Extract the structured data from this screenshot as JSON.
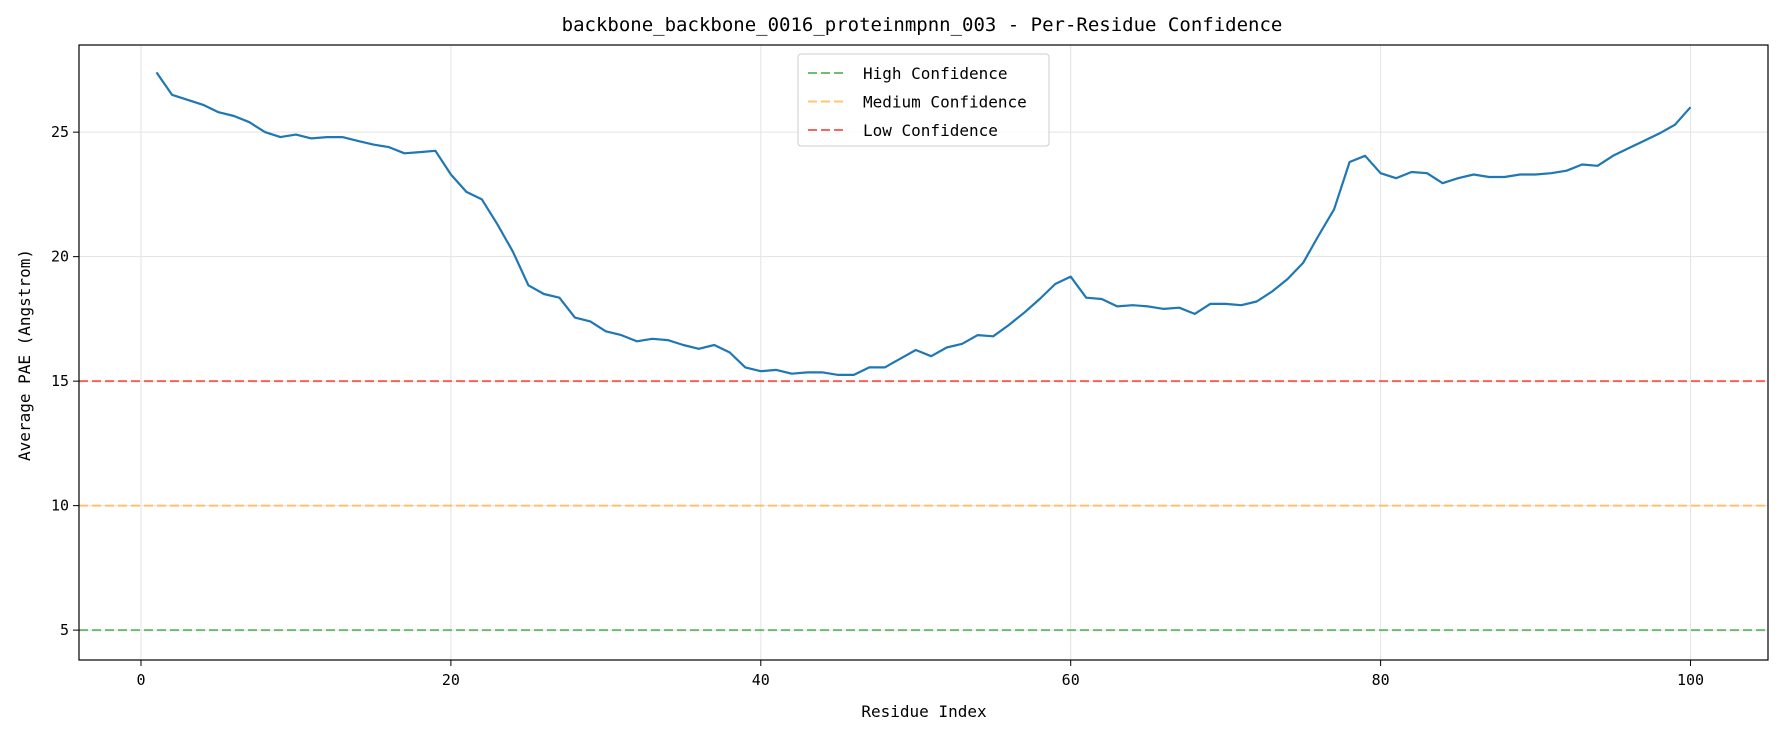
{
  "chart_data": {
    "type": "line",
    "title": "backbone_backbone_0016_proteinmpnn_003 - Per-Residue Confidence",
    "xlabel": "Residue Index",
    "ylabel": "Average PAE (Angstrom)",
    "xlim": [
      -4,
      105
    ],
    "ylim": [
      3.8,
      28.5
    ],
    "xticks": [
      0,
      20,
      40,
      60,
      80,
      100
    ],
    "yticks": [
      5,
      10,
      15,
      20,
      25
    ],
    "grid": true,
    "legend_position": "upper-center",
    "series": [
      {
        "color": "#1f77b4",
        "x": [
          1,
          2,
          3,
          4,
          5,
          6,
          7,
          8,
          9,
          10,
          11,
          12,
          13,
          14,
          15,
          16,
          17,
          18,
          19,
          20,
          21,
          22,
          23,
          24,
          25,
          26,
          27,
          28,
          29,
          30,
          31,
          32,
          33,
          34,
          35,
          36,
          37,
          38,
          39,
          40,
          41,
          42,
          43,
          44,
          45,
          46,
          47,
          48,
          49,
          50,
          51,
          52,
          53,
          54,
          55,
          56,
          57,
          58,
          59,
          60,
          61,
          62,
          63,
          64,
          65,
          66,
          67,
          68,
          69,
          70,
          71,
          72,
          73,
          74,
          75,
          76,
          77,
          78,
          79,
          80,
          81,
          82,
          83,
          84,
          85,
          86,
          87,
          88,
          89,
          90,
          91,
          92,
          93,
          94,
          95,
          96,
          97,
          98,
          99,
          100
        ],
        "y": [
          27.4,
          26.5,
          26.3,
          26.1,
          25.8,
          25.65,
          25.4,
          25.0,
          24.8,
          24.9,
          24.75,
          24.8,
          24.8,
          24.65,
          24.5,
          24.4,
          24.15,
          24.2,
          24.25,
          23.3,
          22.6,
          22.3,
          21.3,
          20.2,
          18.85,
          18.5,
          18.35,
          17.55,
          17.4,
          17.0,
          16.85,
          16.6,
          16.7,
          16.65,
          16.45,
          16.3,
          16.45,
          16.15,
          15.55,
          15.4,
          15.45,
          15.3,
          15.35,
          15.35,
          15.25,
          15.25,
          15.55,
          15.55,
          15.9,
          16.25,
          16.0,
          16.35,
          16.5,
          16.85,
          16.8,
          17.25,
          17.75,
          18.3,
          18.9,
          19.2,
          18.35,
          18.3,
          18.0,
          18.05,
          18.0,
          17.9,
          17.95,
          17.7,
          18.1,
          18.1,
          18.05,
          18.2,
          18.6,
          19.1,
          19.75,
          20.85,
          21.9,
          23.8,
          24.05,
          23.35,
          23.15,
          23.4,
          23.35,
          22.95,
          23.15,
          23.3,
          23.2,
          23.2,
          23.3,
          23.3,
          23.35,
          23.45,
          23.7,
          23.65,
          24.05,
          24.35,
          24.65,
          24.95,
          25.3,
          26.0
        ]
      }
    ],
    "thresholds": [
      {
        "name": "High Confidence",
        "value": 5,
        "color": "#4caf50"
      },
      {
        "name": "Medium Confidence",
        "value": 10,
        "color": "#ffb74d"
      },
      {
        "name": "Low Confidence",
        "value": 15,
        "color": "#f44336"
      }
    ]
  }
}
